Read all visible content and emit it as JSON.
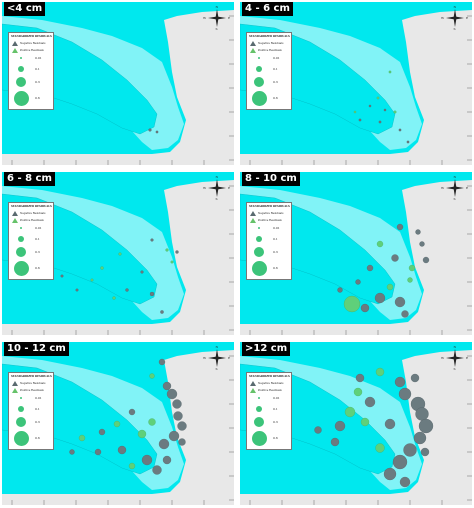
{
  "panels": [
    {
      "label": "<4 cm"
    },
    {
      "label": "4 - 6 cm"
    },
    {
      "label": "6 - 8 cm"
    },
    {
      "label": "8 - 10 cm"
    },
    {
      "label": "10 - 12 cm"
    },
    {
      "label": ">12 cm"
    }
  ],
  "legend": {
    "title": "STANDARDIZED RESIDUALS",
    "negative": "Negative Residuals",
    "positive": "Positive Residuals",
    "sizes": [
      "0.01",
      "0.1",
      "0.3",
      "0.6"
    ]
  },
  "compass": {
    "n": "N",
    "s": "S",
    "e": "E",
    "w": "W"
  },
  "colors": {
    "land": "#e8e8e8",
    "sea": "#00e8ee",
    "sea_light": "#8ff4f7",
    "negative": "#6b7b80",
    "positive": "#5fd07a"
  }
}
